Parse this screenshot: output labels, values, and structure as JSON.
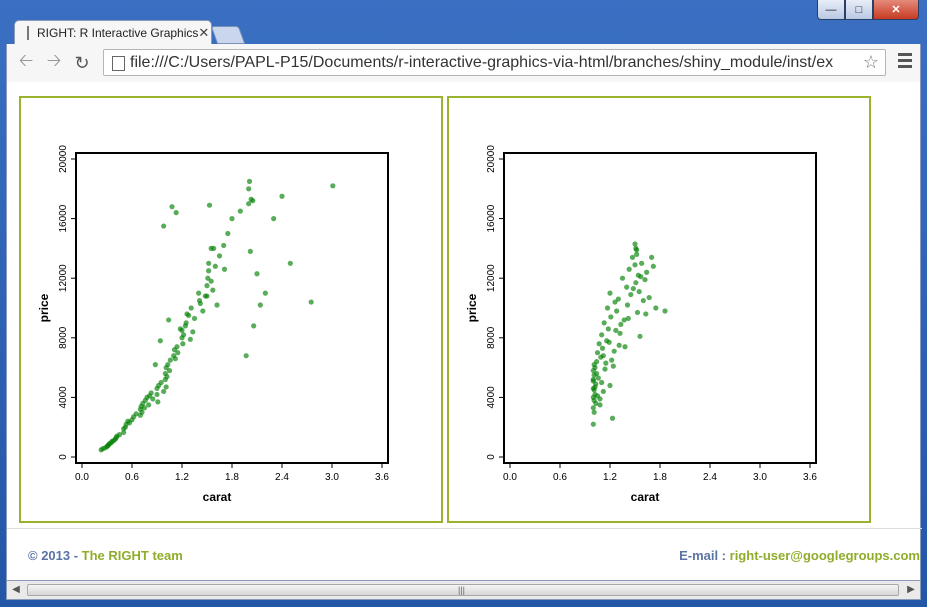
{
  "window": {
    "tab_title": "RIGHT: R Interactive Graphics",
    "url": "file:///C:/Users/PAPL-P15/Documents/r-interactive-graphics-via-html/branches/shiny_module/inst/ex",
    "controls": [
      "minimize",
      "maximize",
      "close"
    ]
  },
  "icons": {
    "back": "back-arrow-icon",
    "forward": "forward-arrow-icon",
    "reload": "reload-icon",
    "page": "page-icon",
    "star": "bookmark-star-icon",
    "menu": "menu-icon"
  },
  "colors": {
    "panel_border": "#99b32f",
    "point": "#008000",
    "footer_text": "#5a74a5",
    "footer_accent": "#8fad2b"
  },
  "footer": {
    "copyright": "© 2013 - ",
    "team": "The RIGHT team",
    "email_label": "E-mail : ",
    "email": "right-user@googlegroups.com"
  },
  "chart_data": [
    {
      "type": "scatter",
      "xlabel": "carat",
      "ylabel": "price",
      "xlim": [
        0.0,
        3.6
      ],
      "ylim": [
        0,
        20000
      ],
      "xticks": [
        "0.0",
        "0.6",
        "1.2",
        "1.8",
        "2.4",
        "3.0",
        "3.6"
      ],
      "yticks": [
        "0",
        "4000",
        "8000",
        "12000",
        "16000",
        "20000"
      ],
      "x": [
        0.23,
        0.25,
        0.28,
        0.3,
        0.31,
        0.32,
        0.33,
        0.35,
        0.36,
        0.38,
        0.4,
        0.41,
        0.42,
        0.45,
        0.5,
        0.5,
        0.52,
        0.53,
        0.55,
        0.57,
        0.6,
        0.62,
        0.65,
        0.7,
        0.7,
        0.71,
        0.72,
        0.73,
        0.75,
        0.76,
        0.78,
        0.8,
        0.81,
        0.83,
        0.85,
        0.9,
        0.9,
        0.91,
        0.92,
        0.95,
        0.98,
        1.0,
        1.0,
        1.01,
        1.01,
        1.02,
        1.03,
        1.05,
        1.06,
        1.1,
        1.11,
        1.12,
        1.15,
        1.2,
        1.2,
        1.21,
        1.22,
        1.24,
        1.25,
        1.28,
        1.3,
        1.31,
        1.35,
        1.4,
        1.41,
        1.45,
        1.5,
        1.5,
        1.51,
        1.52,
        1.52,
        1.55,
        1.57,
        1.6,
        1.62,
        1.65,
        1.7,
        1.71,
        1.75,
        1.8,
        1.9,
        2.0,
        2.0,
        2.01,
        2.02,
        2.05,
        2.1,
        2.2,
        2.3,
        2.4,
        2.5,
        2.75,
        3.01,
        1.08,
        1.13,
        1.26,
        1.53,
        1.55,
        2.03,
        0.98,
        1.04,
        1.14,
        1.33,
        1.48,
        1.58,
        0.88,
        0.94,
        1.18,
        1.42,
        1.97,
        2.06,
        2.14
      ],
      "y": [
        480,
        560,
        620,
        700,
        760,
        820,
        900,
        950,
        1050,
        1100,
        1200,
        1300,
        1400,
        1500,
        1650,
        1900,
        2000,
        2200,
        2400,
        2300,
        2500,
        2700,
        2900,
        2800,
        3200,
        3400,
        3000,
        3600,
        3300,
        3800,
        4000,
        3500,
        4100,
        4300,
        3900,
        4200,
        4600,
        3700,
        4800,
        5000,
        4400,
        5200,
        5600,
        4700,
        6000,
        5400,
        6200,
        5800,
        6500,
        6800,
        7200,
        6600,
        7000,
        8000,
        8500,
        7600,
        8200,
        8800,
        9000,
        9500,
        7900,
        10000,
        9300,
        11000,
        10500,
        9800,
        10800,
        11500,
        12000,
        12500,
        13000,
        14000,
        11200,
        12800,
        10200,
        13500,
        14200,
        12600,
        15000,
        16000,
        16500,
        17000,
        18000,
        18500,
        13800,
        17200,
        12300,
        11000,
        16000,
        17500,
        13000,
        10400,
        18200,
        16800,
        16400,
        9600,
        16900,
        11800,
        17300,
        15500,
        9200,
        7400,
        8400,
        10800,
        14000,
        6200,
        7800,
        8600,
        10300,
        6800,
        8800,
        10200
      ]
    },
    {
      "type": "scatter",
      "xlabel": "carat",
      "ylabel": "price",
      "xlim": [
        0.0,
        3.6
      ],
      "ylim": [
        0,
        20000
      ],
      "xticks": [
        "0.0",
        "0.6",
        "1.2",
        "1.8",
        "2.4",
        "3.0",
        "3.6"
      ],
      "yticks": [
        "0",
        "4000",
        "8000",
        "12000",
        "16000",
        "20000"
      ],
      "x": [
        1.0,
        1.0,
        1.0,
        1.0,
        1.0,
        1.0,
        1.01,
        1.01,
        1.01,
        1.01,
        1.02,
        1.02,
        1.03,
        1.03,
        1.04,
        1.05,
        1.05,
        1.06,
        1.07,
        1.08,
        1.09,
        1.1,
        1.1,
        1.11,
        1.12,
        1.13,
        1.14,
        1.15,
        1.16,
        1.17,
        1.18,
        1.2,
        1.2,
        1.21,
        1.22,
        1.23,
        1.25,
        1.27,
        1.28,
        1.3,
        1.31,
        1.33,
        1.35,
        1.37,
        1.4,
        1.41,
        1.43,
        1.45,
        1.47,
        1.5,
        1.5,
        1.51,
        1.51,
        1.52,
        1.53,
        1.54,
        1.55,
        1.56,
        1.58,
        1.6,
        1.62,
        1.64,
        1.67,
        1.7,
        1.72,
        1.75,
        1.86,
        1.0,
        1.01,
        1.02,
        1.04,
        1.08,
        1.12,
        1.19,
        1.24,
        1.26,
        1.32,
        1.38,
        1.42,
        1.48,
        1.52,
        1.57,
        1.63
      ],
      "y": [
        2200,
        3300,
        4000,
        4600,
        5200,
        5800,
        3000,
        3800,
        4500,
        5500,
        4200,
        6000,
        3600,
        4900,
        6400,
        4100,
        7000,
        5300,
        7600,
        3900,
        6700,
        8200,
        5000,
        7300,
        4400,
        9000,
        5900,
        6300,
        7800,
        10000,
        8600,
        4800,
        11000,
        9400,
        6500,
        2600,
        7100,
        8500,
        9800,
        10600,
        7500,
        8900,
        12000,
        9200,
        11400,
        10200,
        12600,
        10900,
        13400,
        14300,
        12900,
        14000,
        11700,
        13600,
        9700,
        12200,
        11100,
        8100,
        13000,
        10500,
        11900,
        12400,
        10700,
        13400,
        12800,
        10000,
        9800,
        5100,
        6200,
        4700,
        5600,
        3500,
        6800,
        7700,
        6100,
        10400,
        8300,
        7400,
        9300,
        11300,
        13900,
        12100,
        9600
      ]
    }
  ]
}
